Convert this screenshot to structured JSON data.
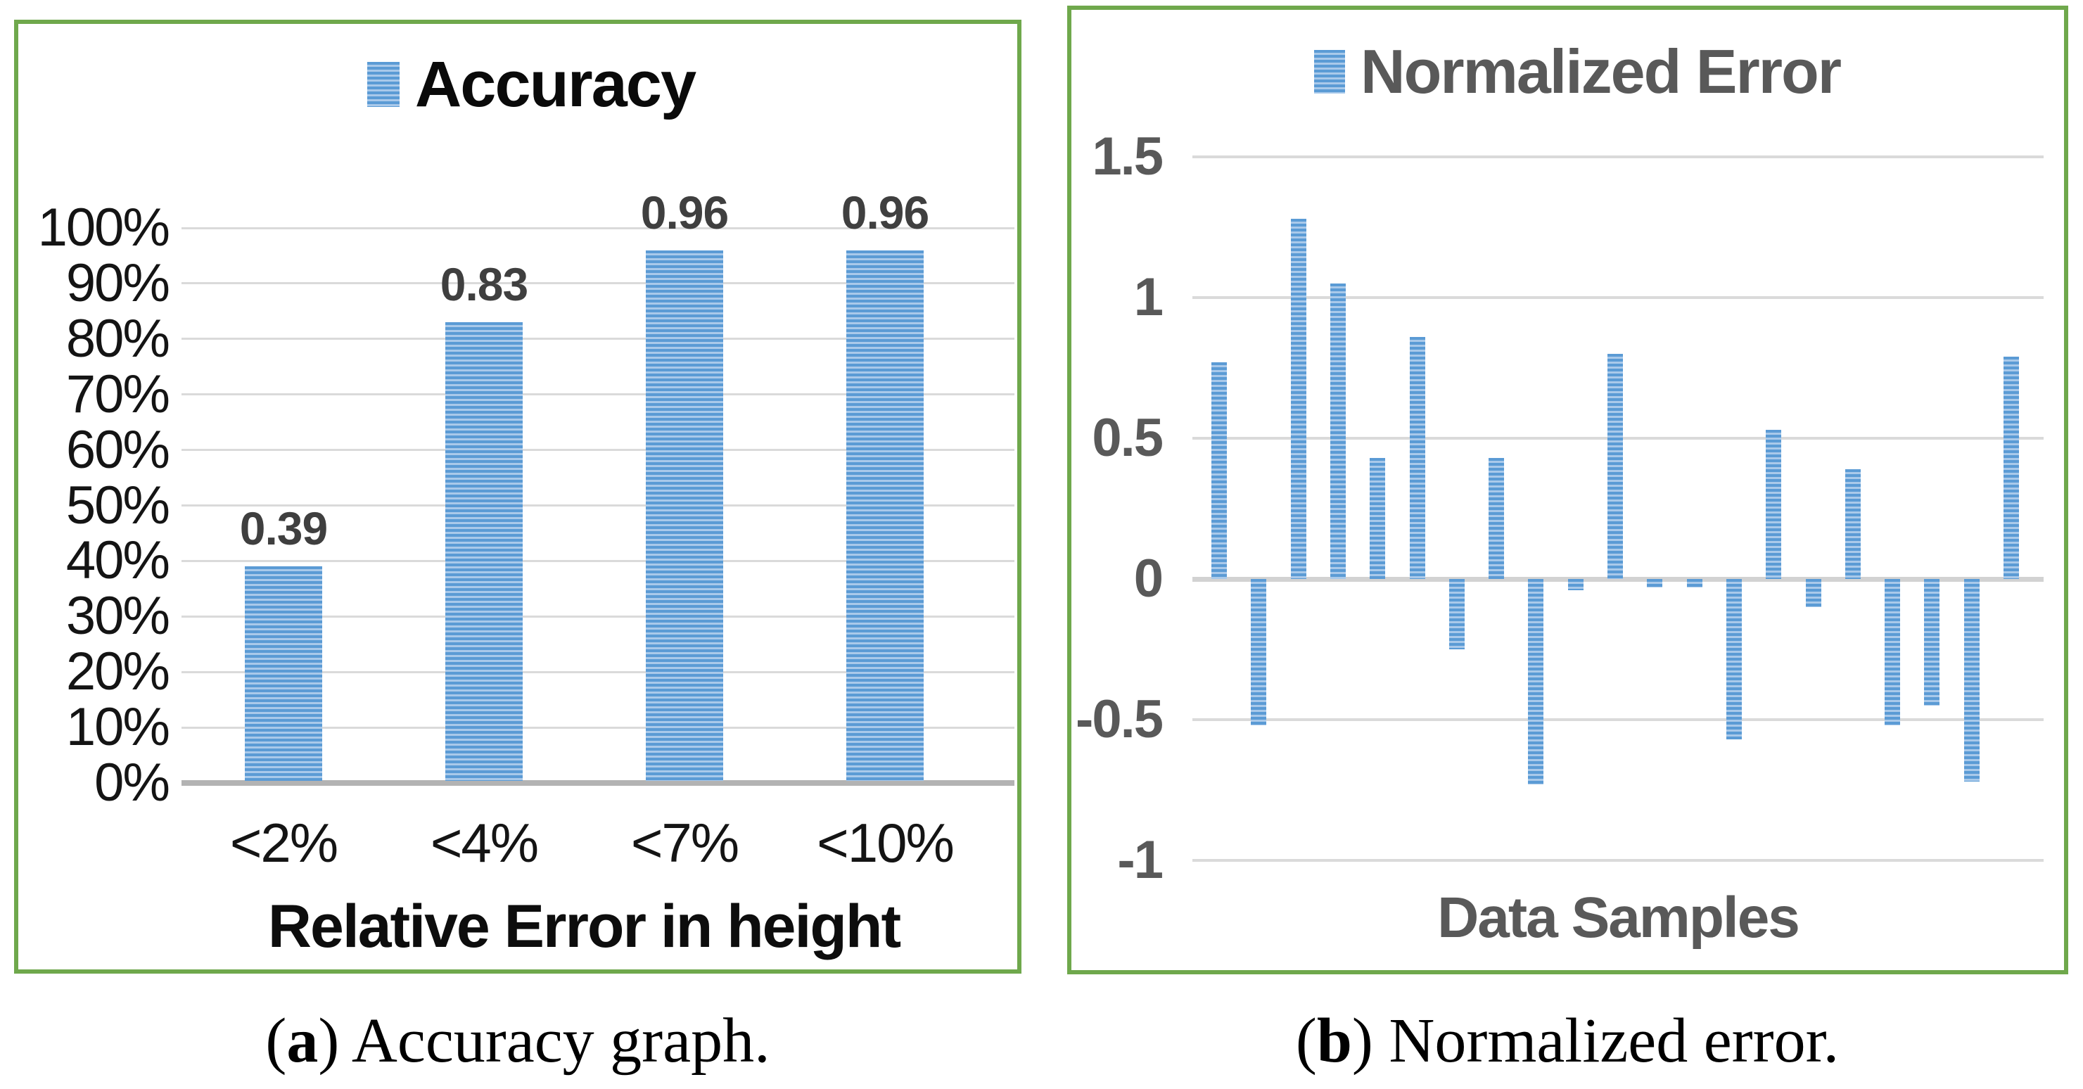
{
  "figure": {
    "border_color": "#6FA84C",
    "bar_base_color": "#5B9BD5",
    "bar_stripe_color": "#A9C9EA",
    "gridline_color": "#DADADA"
  },
  "chart_data": [
    {
      "type": "bar",
      "title": "Accuracy",
      "legend_label": "Accuracy",
      "legend_position": "top",
      "categories": [
        "<2%",
        "<4%",
        "<7%",
        "<10%"
      ],
      "values_percent": [
        39,
        83,
        96,
        96
      ],
      "data_labels": [
        "0.39",
        "0.83",
        "0.96",
        "0.96"
      ],
      "xlabel": "Relative Error in height",
      "ylabel": "",
      "y_ticks": [
        "0%",
        "10%",
        "20%",
        "30%",
        "40%",
        "50%",
        "60%",
        "70%",
        "80%",
        "90%",
        "100%"
      ],
      "ylim_percent": [
        0,
        100
      ],
      "grid": true
    },
    {
      "type": "bar",
      "title": "Normalized Error",
      "legend_label": "Normalized Error",
      "legend_position": "top",
      "xlabel": "Data Samples",
      "ylabel": "",
      "values": [
        0.77,
        -0.52,
        1.28,
        1.05,
        0.43,
        0.86,
        -0.25,
        0.43,
        -0.73,
        -0.04,
        0.8,
        -0.03,
        -0.03,
        -0.57,
        0.53,
        -0.1,
        0.39,
        -0.52,
        -0.45,
        -0.72,
        0.79
      ],
      "y_ticks": [
        "1.5",
        "1",
        "0.5",
        "0",
        "-0.5",
        "-1"
      ],
      "y_tick_values": [
        1.5,
        1,
        0.5,
        0,
        -0.5,
        -1
      ],
      "ylim": [
        -1.25,
        1.75
      ],
      "grid": true
    }
  ],
  "captions": {
    "a": {
      "open": "(",
      "letter": "a",
      "rest": ") Accuracy graph."
    },
    "b": {
      "open": "(",
      "letter": "b",
      "rest": ") Normalized error."
    }
  }
}
